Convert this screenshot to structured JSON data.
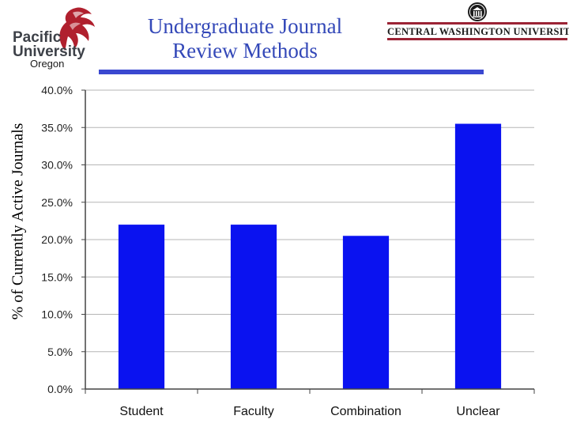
{
  "header": {
    "title_line1": "Undergraduate Journal",
    "title_line2": "Review Methods",
    "left_logo": {
      "line1": "Pacific",
      "line2": "University",
      "line3": "Oregon",
      "icon": "boxer-dragon-logo-icon"
    },
    "right_logo": {
      "name": "CENTRAL WASHINGTON UNIVERSITY",
      "icon": "university-seal-icon"
    }
  },
  "colors": {
    "bar": "#0a12f0",
    "title": "#3348b8",
    "title_bar": "#3a48d0",
    "cwu_rule": "#9b2335"
  },
  "chart_data": {
    "type": "bar",
    "categories": [
      "Student",
      "Faculty",
      "Combination",
      "Unclear"
    ],
    "values": [
      22.0,
      22.0,
      20.5,
      35.5
    ],
    "title": "Undergraduate Journal Review Methods",
    "xlabel": "",
    "ylabel": "% of Currently Active Journals",
    "ylim": [
      0,
      40
    ],
    "yticks": [
      0,
      5,
      10,
      15,
      20,
      25,
      30,
      35,
      40
    ],
    "ytick_labels": [
      "0.0%",
      "5.0%",
      "10.0%",
      "15.0%",
      "20.0%",
      "25.0%",
      "30.0%",
      "35.0%",
      "40.0%"
    ],
    "grid": true,
    "legend": "none"
  }
}
